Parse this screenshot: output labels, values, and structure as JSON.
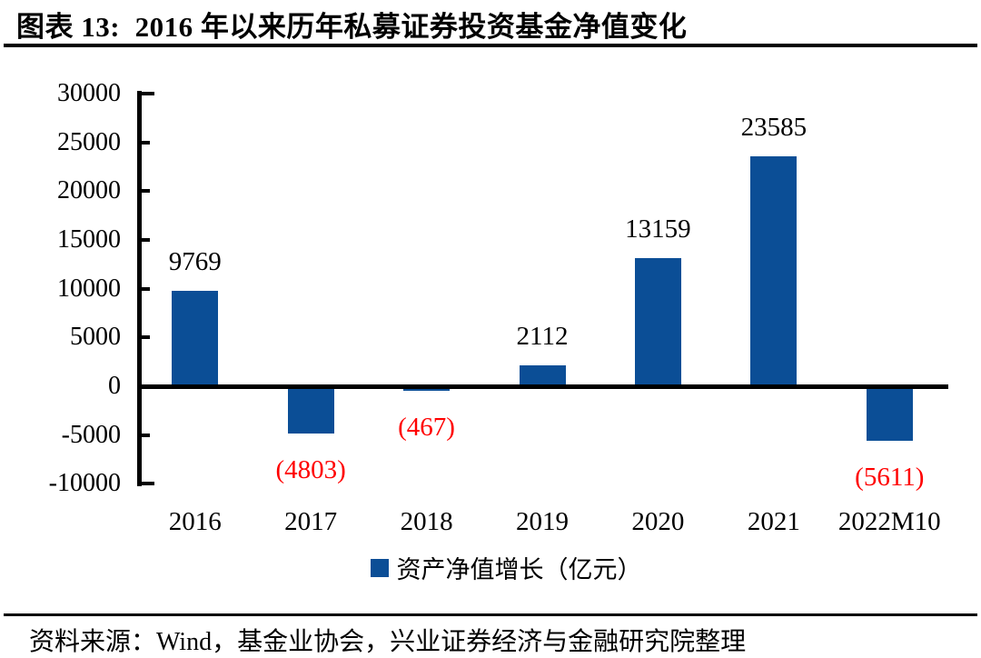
{
  "figure": {
    "title": "图表 13:  2016 年以来历年私募证券投资基金净值变化",
    "source": "资料来源：Wind，基金业协会，兴业证券经济与金融研究院整理"
  },
  "legend": {
    "label": "资产净值增长（亿元）"
  },
  "colors": {
    "bar": "#0B4E96",
    "negative_label": "#FF0000",
    "positive_label": "#000000",
    "axis": "#000000",
    "background": "#FFFFFF"
  },
  "chart_data": {
    "type": "bar",
    "title": "2016 年以来历年私募证券投资基金净值变化",
    "categories": [
      "2016",
      "2017",
      "2018",
      "2019",
      "2020",
      "2021",
      "2022M10"
    ],
    "values": [
      9769,
      -4803,
      -467,
      2112,
      13159,
      23585,
      -5611
    ],
    "data_labels": [
      "9769",
      "(4803)",
      "(467)",
      "2112",
      "13159",
      "23585",
      "(5611)"
    ],
    "negative_label_style": "red-parentheses",
    "xlabel": "",
    "ylabel": "",
    "ylim": [
      -10000,
      30000
    ],
    "ytick_step": 5000,
    "yticks": [
      30000,
      25000,
      20000,
      15000,
      10000,
      5000,
      0,
      -5000,
      -10000
    ],
    "grid": false,
    "legend": [
      "资产净值增长（亿元）"
    ],
    "legend_position": "bottom",
    "unit": "亿元"
  }
}
